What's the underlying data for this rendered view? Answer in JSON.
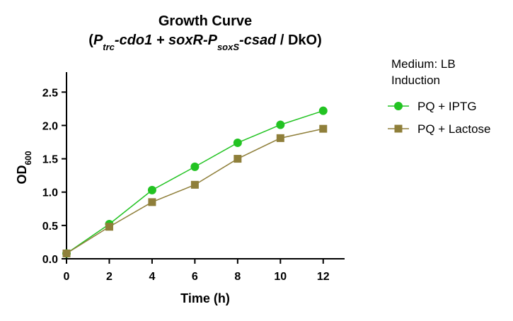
{
  "chart_data": {
    "type": "line",
    "title": "Growth Curve",
    "subtitle_parts": [
      "(",
      "P",
      "trc",
      "-cdo1 + soxR-",
      "P",
      "soxS",
      "-csad",
      " / DkO)"
    ],
    "x_label": "Time (h)",
    "y_label_parts": [
      "OD",
      "600"
    ],
    "legend_title": [
      "Medium: LB",
      "Induction"
    ],
    "x": [
      0,
      2,
      4,
      6,
      8,
      10,
      12
    ],
    "series": [
      {
        "name": "PQ + IPTG",
        "color": "#22c322",
        "marker": "circle",
        "values": [
          0.08,
          0.52,
          1.03,
          1.38,
          1.74,
          2.01,
          2.22
        ]
      },
      {
        "name": "PQ + Lactose",
        "color": "#8f7f3a",
        "marker": "square",
        "values": [
          0.08,
          0.48,
          0.85,
          1.11,
          1.5,
          1.81,
          1.95
        ]
      }
    ],
    "xlim": [
      0,
      13
    ],
    "xticks": [
      0,
      2,
      4,
      6,
      8,
      10,
      12
    ],
    "ylim": [
      0,
      2.8
    ],
    "yticks": [
      {
        "value": 0,
        "label": "0.0"
      },
      0.5,
      {
        "value": 1,
        "label": "1.0"
      },
      1.5,
      {
        "value": 2,
        "label": "2.0"
      },
      2.5
    ],
    "grid": false,
    "legend": "right"
  }
}
